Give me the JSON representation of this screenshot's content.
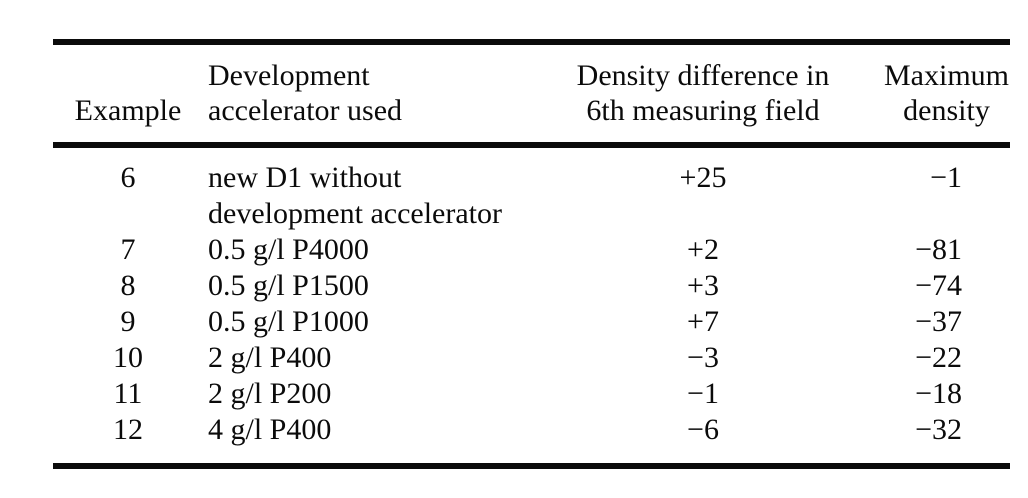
{
  "table": {
    "header": {
      "example": "Example",
      "accelerator_line1": "Development",
      "accelerator_line2": "accelerator used",
      "density_line1": "Density difference in",
      "density_line2": "6th measuring field",
      "maximum_line1": "Maximum",
      "maximum_line2": "density"
    },
    "rows": [
      {
        "example": "6",
        "accelerator_line1": "new D1 without",
        "accelerator_line2": "development accelerator",
        "density_difference": "+25",
        "maximum_density": "−1"
      },
      {
        "example": "7",
        "accelerator": "0.5 g/l P4000",
        "density_difference": "+2",
        "maximum_density": "−81"
      },
      {
        "example": "8",
        "accelerator": "0.5 g/l P1500",
        "density_difference": "+3",
        "maximum_density": "−74"
      },
      {
        "example": "9",
        "accelerator": "0.5 g/l P1000",
        "density_difference": "+7",
        "maximum_density": "−37"
      },
      {
        "example": "10",
        "accelerator": "2 g/l P400",
        "density_difference": "−3",
        "maximum_density": "−22"
      },
      {
        "example": "11",
        "accelerator": "2 g/l P200",
        "density_difference": "−1",
        "maximum_density": "−18"
      },
      {
        "example": "12",
        "accelerator": "4 g/l P400",
        "density_difference": "−6",
        "maximum_density": "−32"
      }
    ],
    "colors": {
      "rule": "#0b0b0b",
      "text": "#0b0b0b",
      "background": "#ffffff"
    }
  }
}
